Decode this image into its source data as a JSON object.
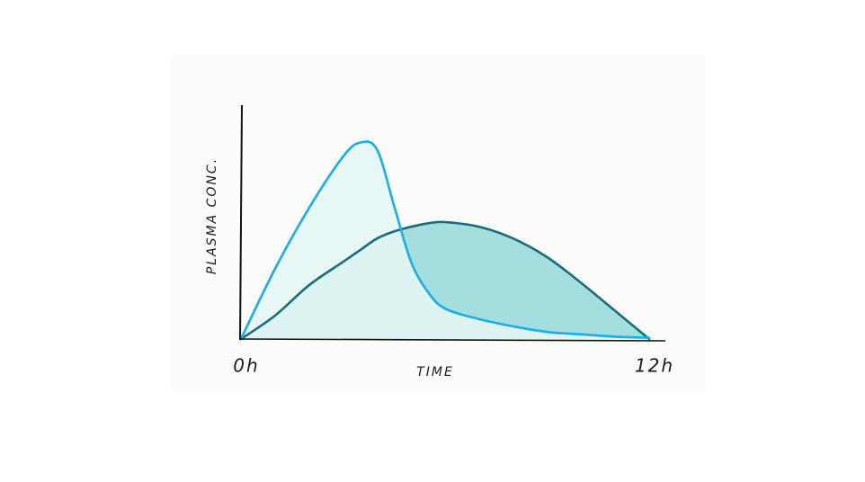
{
  "chart_data": {
    "type": "line",
    "x_label": "TIME",
    "y_label": "PLASMA CONC.",
    "x": [
      0,
      1,
      2,
      3,
      3.5,
      4,
      4.5,
      5,
      5.5,
      6,
      7,
      8,
      9,
      10,
      11,
      12
    ],
    "series": [
      {
        "color": "#1aaee4",
        "fill": "#e3f6f5",
        "values": [
          0,
          30,
          56,
          78,
          84,
          81,
          57,
          33,
          20,
          13,
          8.5,
          5.4,
          3,
          2,
          1,
          0.5
        ]
      },
      {
        "color": "#1c6b78",
        "fill": "#5ec6c8",
        "values": [
          0,
          10,
          23,
          33,
          38,
          43,
          46,
          48,
          49.5,
          50,
          48,
          43,
          35,
          24,
          12,
          0
        ]
      }
    ],
    "xlim": [
      0,
      12
    ],
    "ylim": [
      0,
      100
    ],
    "xticks": [
      {
        "value": 0,
        "label": "0h"
      },
      {
        "value": 12,
        "label": "12h"
      }
    ]
  }
}
